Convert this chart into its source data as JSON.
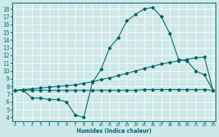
{
  "xlabel": "Humidex (Indice chaleur)",
  "bg_color": "#cce8e8",
  "grid_color": "#ffffff",
  "line_color": "#006666",
  "x_ticks": [
    0,
    1,
    2,
    3,
    4,
    5,
    6,
    7,
    8,
    9,
    10,
    11,
    12,
    13,
    14,
    15,
    16,
    17,
    18,
    19,
    20,
    21,
    22,
    23
  ],
  "y_ticks": [
    4,
    5,
    6,
    7,
    8,
    9,
    10,
    11,
    12,
    13,
    14,
    15,
    16,
    17,
    18
  ],
  "ylim": [
    3.5,
    18.8
  ],
  "xlim": [
    -0.3,
    23.3
  ],
  "series1_x": [
    0,
    1,
    2,
    3,
    4,
    5,
    6,
    7,
    8,
    9,
    10,
    11,
    12,
    13,
    14,
    15,
    16,
    17,
    18,
    19,
    20,
    21,
    22,
    23
  ],
  "series1_y": [
    7.5,
    7.5,
    6.5,
    6.5,
    6.3,
    6.3,
    6.0,
    4.3,
    4.0,
    8.5,
    10.2,
    13.0,
    14.3,
    16.5,
    17.3,
    18.0,
    18.2,
    17.0,
    14.8,
    11.5,
    11.3,
    10.0,
    9.5,
    7.5
  ],
  "series2_x": [
    0,
    1,
    2,
    3,
    4,
    5,
    6,
    7,
    8,
    9,
    10,
    11,
    12,
    13,
    14,
    15,
    16,
    17,
    18,
    19,
    20,
    21,
    22,
    23
  ],
  "series2_y": [
    7.5,
    7.6,
    7.7,
    7.8,
    7.9,
    8.0,
    8.1,
    8.2,
    8.4,
    8.6,
    8.9,
    9.1,
    9.4,
    9.7,
    10.0,
    10.3,
    10.6,
    10.9,
    11.1,
    11.3,
    11.5,
    11.7,
    11.8,
    7.5
  ],
  "series3_x": [
    0,
    1,
    2,
    3,
    4,
    5,
    6,
    7,
    8,
    9,
    10,
    11,
    12,
    13,
    14,
    15,
    16,
    17,
    18,
    19,
    20,
    21,
    22,
    23
  ],
  "series3_y": [
    7.5,
    7.5,
    7.5,
    7.5,
    7.5,
    7.5,
    7.5,
    7.5,
    7.5,
    7.5,
    7.5,
    7.5,
    7.5,
    7.5,
    7.5,
    7.6,
    7.6,
    7.6,
    7.6,
    7.6,
    7.6,
    7.6,
    7.6,
    7.5
  ]
}
